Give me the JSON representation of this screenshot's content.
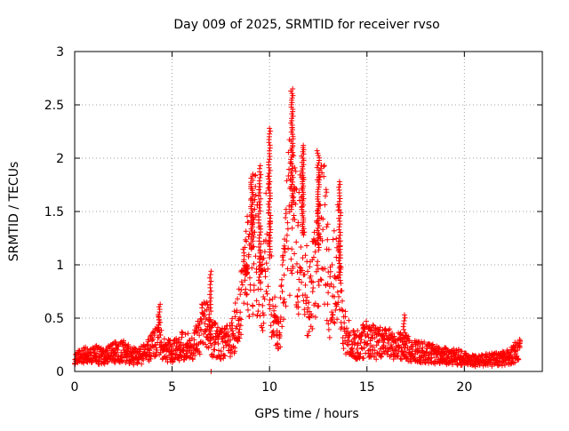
{
  "chart_data": {
    "type": "scatter",
    "title": "Day 009 of 2025, SRMTID for receiver rvso",
    "xlabel": "GPS time / hours",
    "ylabel": "SRMTID / TECUs",
    "xlim": [
      0,
      24
    ],
    "ylim": [
      0,
      3
    ],
    "xticks": [
      0,
      5,
      10,
      15,
      20
    ],
    "yticks": [
      0,
      0.5,
      1,
      1.5,
      2,
      2.5,
      3
    ],
    "grid": true,
    "marker": "+",
    "series": [
      {
        "name": "SRMTID",
        "color": "#ff0000",
        "envelope": [
          [
            0.0,
            0.15
          ],
          [
            0.5,
            0.18
          ],
          [
            1.0,
            0.2
          ],
          [
            1.5,
            0.18
          ],
          [
            2.0,
            0.22
          ],
          [
            2.5,
            0.24
          ],
          [
            3.0,
            0.18
          ],
          [
            3.5,
            0.2
          ],
          [
            4.0,
            0.3
          ],
          [
            4.3,
            0.42
          ],
          [
            4.6,
            0.28
          ],
          [
            5.0,
            0.22
          ],
          [
            5.5,
            0.3
          ],
          [
            6.0,
            0.28
          ],
          [
            6.3,
            0.4
          ],
          [
            6.7,
            0.6
          ],
          [
            7.0,
            0.4
          ],
          [
            7.5,
            0.32
          ],
          [
            8.0,
            0.38
          ],
          [
            8.4,
            0.6
          ],
          [
            8.7,
            1.0
          ],
          [
            9.0,
            1.4
          ],
          [
            9.3,
            1.5
          ],
          [
            9.6,
            0.8
          ],
          [
            9.9,
            1.7
          ],
          [
            10.2,
            0.6
          ],
          [
            10.5,
            0.45
          ],
          [
            10.8,
            1.2
          ],
          [
            11.1,
            2.0
          ],
          [
            11.4,
            1.4
          ],
          [
            11.7,
            1.6
          ],
          [
            12.0,
            0.7
          ],
          [
            12.4,
            1.3
          ],
          [
            12.8,
            1.8
          ],
          [
            13.1,
            0.8
          ],
          [
            13.5,
            1.3
          ],
          [
            13.8,
            0.5
          ],
          [
            14.2,
            0.35
          ],
          [
            14.6,
            0.3
          ],
          [
            15.0,
            0.4
          ],
          [
            15.5,
            0.32
          ],
          [
            16.0,
            0.35
          ],
          [
            16.5,
            0.3
          ],
          [
            17.0,
            0.28
          ],
          [
            17.5,
            0.25
          ],
          [
            18.0,
            0.22
          ],
          [
            18.5,
            0.2
          ],
          [
            19.0,
            0.18
          ],
          [
            19.5,
            0.18
          ],
          [
            20.0,
            0.15
          ],
          [
            20.5,
            0.12
          ],
          [
            21.0,
            0.13
          ],
          [
            21.5,
            0.14
          ],
          [
            22.0,
            0.16
          ],
          [
            22.5,
            0.2
          ],
          [
            22.8,
            0.28
          ]
        ],
        "peaks": [
          [
            4.35,
            0.63
          ],
          [
            6.95,
            0.94
          ],
          [
            8.8,
            1.0
          ],
          [
            9.1,
            1.85
          ],
          [
            9.5,
            1.93
          ],
          [
            10.0,
            2.28
          ],
          [
            11.15,
            2.65
          ],
          [
            11.7,
            2.12
          ],
          [
            12.5,
            2.07
          ],
          [
            13.6,
            1.78
          ],
          [
            16.9,
            0.53
          ],
          [
            22.8,
            0.3
          ]
        ],
        "outliers": [
          [
            7.0,
            0.0
          ]
        ]
      }
    ]
  }
}
